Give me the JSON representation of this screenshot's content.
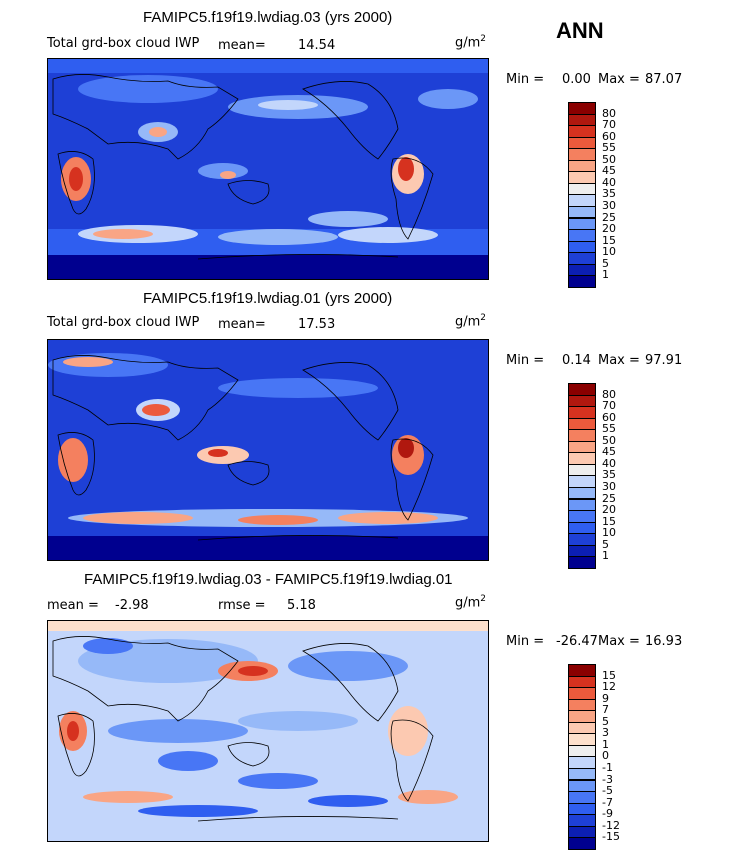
{
  "season": "ANN",
  "units_base": "g/m",
  "units_exp": "2",
  "colors": {
    "panel_ramp": [
      "#00008f",
      "#0c1fb3",
      "#1e40d6",
      "#2f5ef0",
      "#4876f5",
      "#6b97f7",
      "#96b9f8",
      "#c3d6fb",
      "#eeeeee",
      "#fcc9b1",
      "#f9a585",
      "#f4805f",
      "#ec5a3c",
      "#d6321f",
      "#b0180f",
      "#8a0000"
    ],
    "diff_ramp": [
      "#00008f",
      "#0c1fb3",
      "#1e40d6",
      "#2f5ef0",
      "#4876f5",
      "#6b97f7",
      "#96b9f8",
      "#c3d6fb",
      "#eeeeee",
      "#fde0cc",
      "#fcc9b1",
      "#f9a585",
      "#f4805f",
      "#ec5a3c",
      "#d6321f",
      "#8a0000"
    ]
  },
  "chart_data": [
    {
      "type": "heatmap",
      "title": "FAMIPC5.f19f19.lwdiag.03 (yrs 2000)",
      "variable": "Total grd-box cloud IWP",
      "mean_label": "mean=",
      "mean": "14.54",
      "min_label": "Min =",
      "min": "0.00",
      "max_label": "Max =",
      "max": "87.07",
      "levels": [
        "80",
        "70",
        "60",
        "55",
        "50",
        "45",
        "40",
        "35",
        "30",
        "25",
        "20",
        "15",
        "10",
        "5",
        "1"
      ]
    },
    {
      "type": "heatmap",
      "title": "FAMIPC5.f19f19.lwdiag.01 (yrs 2000)",
      "variable": "Total grd-box cloud IWP",
      "mean_label": "mean=",
      "mean": "17.53",
      "min_label": "Min =",
      "min": "0.14",
      "max_label": "Max =",
      "max": "97.91",
      "levels": [
        "80",
        "70",
        "60",
        "55",
        "50",
        "45",
        "40",
        "35",
        "30",
        "25",
        "20",
        "15",
        "10",
        "5",
        "1"
      ]
    },
    {
      "type": "heatmap",
      "title": "FAMIPC5.f19f19.lwdiag.03 - FAMIPC5.f19f19.lwdiag.01",
      "mean_label": "mean =",
      "mean": "-2.98",
      "rmse_label": "rmse =",
      "rmse": "5.18",
      "min_label": "Min =",
      "min": "-26.47",
      "max_label": "Max =",
      "max": "16.93",
      "levels": [
        "15",
        "12",
        "9",
        "7",
        "5",
        "3",
        "1",
        "0",
        "-1",
        "-3",
        "-5",
        "-7",
        "-9",
        "-12",
        "-15"
      ]
    }
  ]
}
